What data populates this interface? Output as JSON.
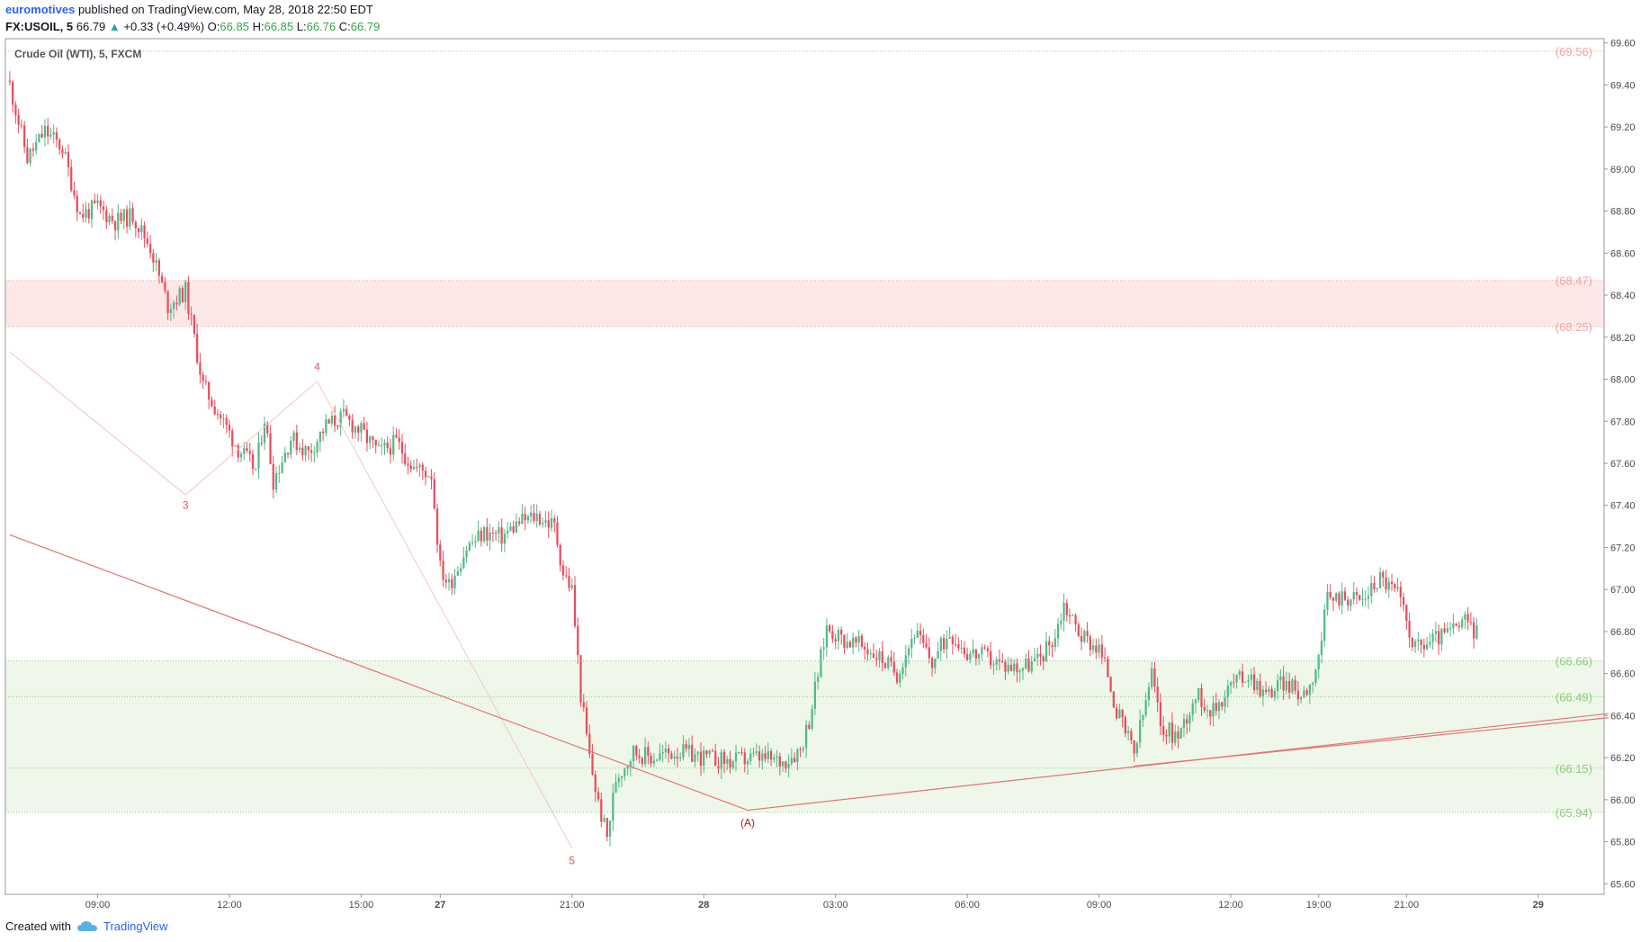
{
  "header": {
    "author": "euromotives",
    "published": "published on TradingView.com, May 28, 2018 22:50 EDT",
    "symbol": "FX:USOIL, 5",
    "last": "66.79",
    "change_arrow": "▲",
    "change": "+0.33 (+0.49%)",
    "o_label": "O:",
    "o_value": "66.85",
    "h_label": "H:",
    "h_value": "66.85",
    "l_label": "L:",
    "l_value": "66.76",
    "c_label": "C:",
    "c_value": "66.79"
  },
  "legend": {
    "series_name": "Crude Oil (WTI), 5, FXCM"
  },
  "footer": {
    "created_with": "Created with",
    "brand": "TradingView",
    "brand_icon": "tradingview-cloud-icon"
  },
  "colors": {
    "up": "#53b987",
    "down": "#eb4d5c",
    "trendline": "#e57373",
    "resistance_zone": "#fde8e8",
    "support_zone": "#eef7ea"
  },
  "chart_data": {
    "type": "candlestick",
    "interval": "5 minutes",
    "ylim": [
      65.55,
      69.62
    ],
    "y_ticks": [
      "69.60",
      "69.40",
      "69.20",
      "69.00",
      "68.80",
      "68.60",
      "68.40",
      "68.20",
      "68.00",
      "67.80",
      "67.60",
      "67.40",
      "67.20",
      "67.00",
      "66.80",
      "66.60",
      "66.40",
      "66.20",
      "66.00",
      "65.80",
      "65.60"
    ],
    "x_ticks": [
      {
        "label": "09:00",
        "i": 10
      },
      {
        "label": "12:00",
        "i": 25
      },
      {
        "label": "15:00",
        "i": 40
      },
      {
        "label": "27",
        "i": 49
      },
      {
        "label": "21:00",
        "i": 64
      },
      {
        "label": "28",
        "i": 79
      },
      {
        "label": "03:00",
        "i": 94
      },
      {
        "label": "06:00",
        "i": 109
      },
      {
        "label": "09:00",
        "i": 124
      },
      {
        "label": "12:00",
        "i": 139
      },
      {
        "label": "19:00",
        "i": 149
      },
      {
        "label": "21:00",
        "i": 159
      },
      {
        "label": "29",
        "i": 174
      }
    ],
    "n_slots": 182,
    "price_levels": [
      {
        "value": 69.56,
        "label": "(69.56)",
        "color": "#f4a3a3"
      },
      {
        "value": 68.47,
        "label": "(68.47)",
        "color": "#f4a3a3"
      },
      {
        "value": 68.25,
        "label": "(68.25)",
        "color": "#f4a3a3"
      },
      {
        "value": 66.66,
        "label": "(66.66)",
        "color": "#8fcb7b"
      },
      {
        "value": 66.49,
        "label": "(66.49)",
        "color": "#8fcb7b"
      },
      {
        "value": 66.15,
        "label": "(66.15)",
        "color": "#8fcb7b"
      },
      {
        "value": 65.94,
        "label": "(65.94)",
        "color": "#8fcb7b"
      }
    ],
    "zones": [
      {
        "from": 68.25,
        "to": 68.47,
        "kind": "resistance"
      },
      {
        "from": 65.94,
        "to": 66.66,
        "kind": "support"
      }
    ],
    "wave_labels": [
      {
        "label": "3",
        "i": 20,
        "price": 67.46,
        "anchor": "below"
      },
      {
        "label": "4",
        "i": 35,
        "price": 68.0,
        "anchor": "above"
      },
      {
        "label": "5",
        "i": 64,
        "price": 65.77,
        "anchor": "below"
      },
      {
        "label": "(A)",
        "i": 84,
        "price": 65.95,
        "anchor": "below"
      }
    ],
    "wave_path": [
      {
        "i": 0,
        "price": 68.13
      },
      {
        "i": 20,
        "price": 67.45
      },
      {
        "i": 35,
        "price": 67.99
      },
      {
        "i": 64,
        "price": 65.77
      }
    ],
    "trendlines": [
      {
        "points": [
          {
            "i": 0,
            "price": 67.26
          },
          {
            "i": 84,
            "price": 65.95
          },
          {
            "i": 182,
            "price": 66.41
          }
        ]
      },
      {
        "points": [
          {
            "i": 128,
            "price": 66.16
          },
          {
            "i": 182,
            "price": 66.39
          }
        ]
      }
    ],
    "path": [
      [
        0,
        69.4
      ],
      [
        2,
        69.05
      ],
      [
        4,
        69.18
      ],
      [
        6,
        69.1
      ],
      [
        8,
        68.78
      ],
      [
        10,
        68.82
      ],
      [
        12,
        68.75
      ],
      [
        14,
        68.78
      ],
      [
        16,
        68.63
      ],
      [
        18,
        68.35
      ],
      [
        20,
        68.42
      ],
      [
        22,
        67.97
      ],
      [
        24,
        67.82
      ],
      [
        26,
        67.67
      ],
      [
        28,
        67.57
      ],
      [
        29,
        67.82
      ],
      [
        30,
        67.52
      ],
      [
        32,
        67.72
      ],
      [
        34,
        67.65
      ],
      [
        36,
        67.78
      ],
      [
        38,
        67.82
      ],
      [
        40,
        67.75
      ],
      [
        42,
        67.65
      ],
      [
        44,
        67.7
      ],
      [
        46,
        67.58
      ],
      [
        48,
        67.55
      ],
      [
        49,
        67.1
      ],
      [
        50,
        67.02
      ],
      [
        52,
        67.2
      ],
      [
        54,
        67.27
      ],
      [
        56,
        67.25
      ],
      [
        58,
        67.32
      ],
      [
        60,
        67.35
      ],
      [
        62,
        67.3
      ],
      [
        63,
        67.08
      ],
      [
        64,
        67.0
      ],
      [
        65,
        66.5
      ],
      [
        66,
        66.2
      ],
      [
        67,
        65.98
      ],
      [
        68,
        65.82
      ],
      [
        69,
        66.1
      ],
      [
        71,
        66.23
      ],
      [
        73,
        66.2
      ],
      [
        76,
        66.23
      ],
      [
        79,
        66.2
      ],
      [
        82,
        66.18
      ],
      [
        85,
        66.2
      ],
      [
        88,
        66.18
      ],
      [
        90,
        66.24
      ],
      [
        91,
        66.38
      ],
      [
        92,
        66.6
      ],
      [
        93,
        66.82
      ],
      [
        95,
        66.76
      ],
      [
        97,
        66.73
      ],
      [
        99,
        66.68
      ],
      [
        101,
        66.6
      ],
      [
        103,
        66.8
      ],
      [
        105,
        66.65
      ],
      [
        107,
        66.8
      ],
      [
        109,
        66.7
      ],
      [
        111,
        66.68
      ],
      [
        113,
        66.64
      ],
      [
        115,
        66.63
      ],
      [
        117,
        66.66
      ],
      [
        119,
        66.78
      ],
      [
        120,
        66.93
      ],
      [
        122,
        66.78
      ],
      [
        124,
        66.72
      ],
      [
        125,
        66.6
      ],
      [
        126,
        66.42
      ],
      [
        128,
        66.22
      ],
      [
        129,
        66.4
      ],
      [
        130,
        66.6
      ],
      [
        131,
        66.35
      ],
      [
        133,
        66.3
      ],
      [
        135,
        66.5
      ],
      [
        137,
        66.42
      ],
      [
        139,
        66.55
      ],
      [
        141,
        66.6
      ],
      [
        143,
        66.5
      ],
      [
        145,
        66.56
      ],
      [
        147,
        66.5
      ],
      [
        148,
        66.55
      ],
      [
        149,
        66.68
      ],
      [
        150,
        66.95
      ],
      [
        152,
        66.97
      ],
      [
        154,
        66.95
      ],
      [
        156,
        67.06
      ],
      [
        158,
        66.98
      ],
      [
        160,
        66.72
      ],
      [
        162,
        66.76
      ],
      [
        164,
        66.8
      ],
      [
        166,
        66.85
      ],
      [
        167,
        66.79
      ]
    ]
  }
}
